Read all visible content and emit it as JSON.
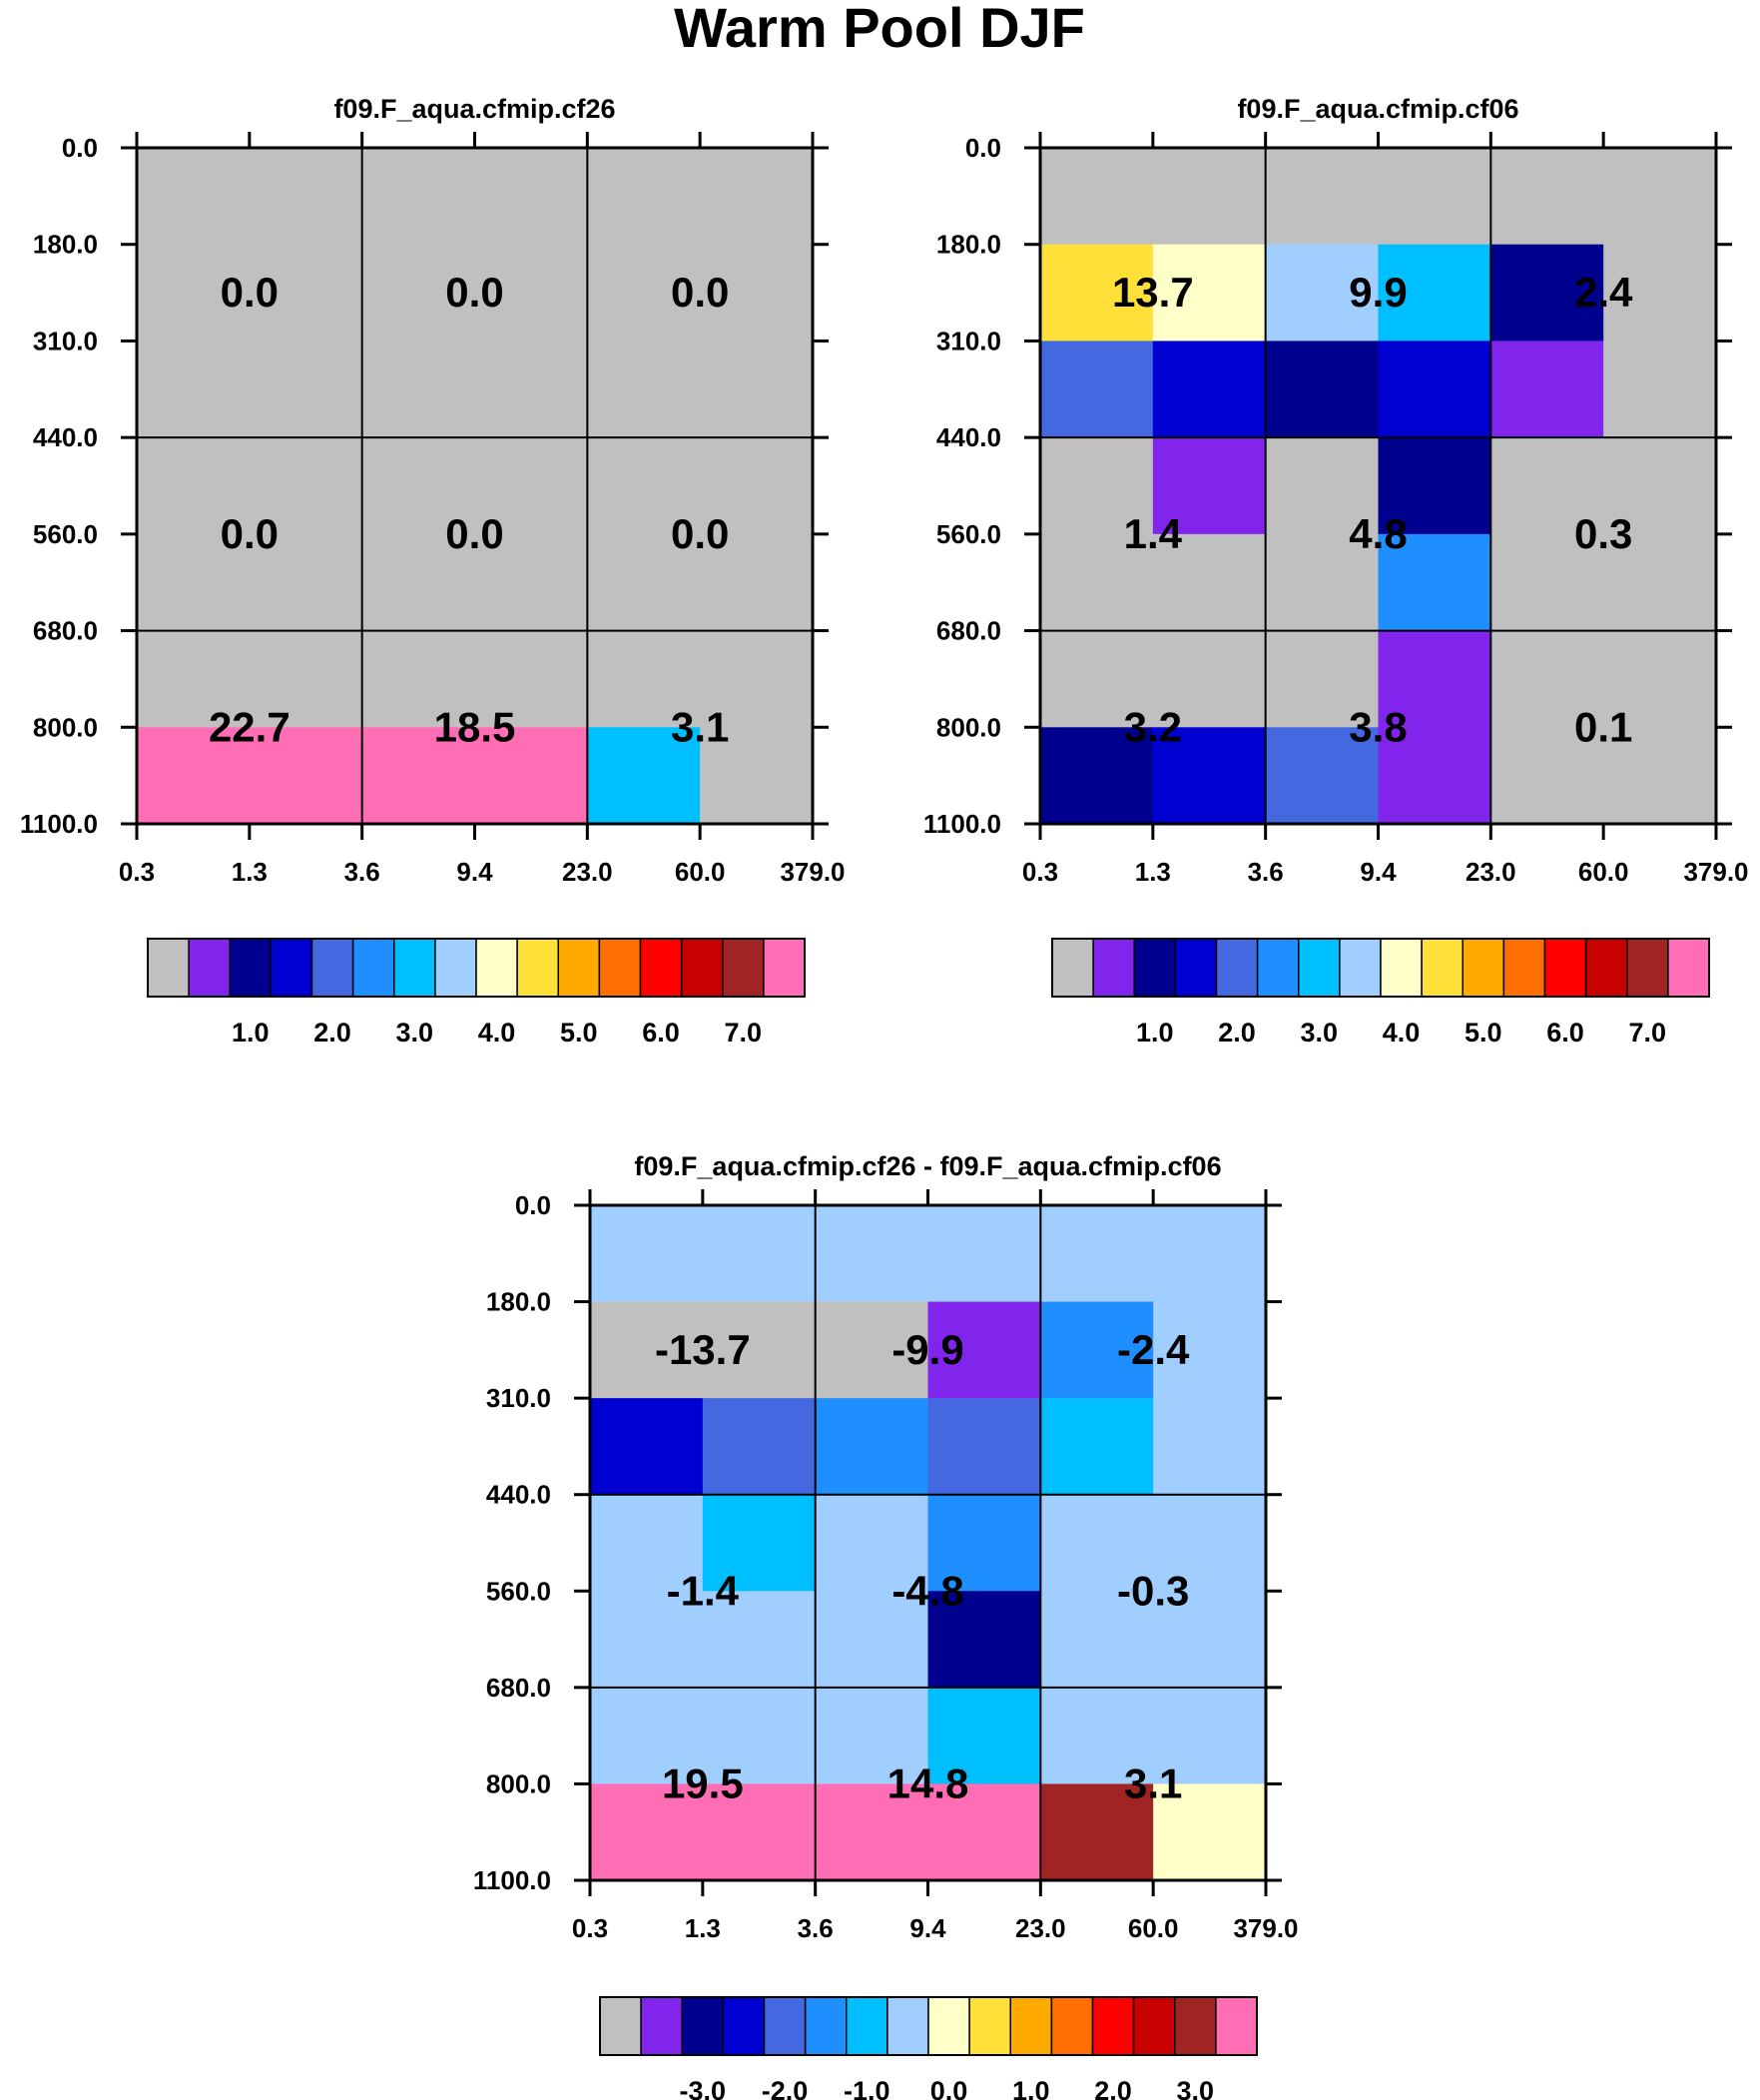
{
  "page_title": "Warm Pool DJF",
  "x_ticks": [
    "0.3",
    "1.3",
    "3.6",
    "9.4",
    "23.0",
    "60.0",
    "379.0"
  ],
  "y_ticks": [
    "0.0",
    "180.0",
    "310.0",
    "440.0",
    "560.0",
    "680.0",
    "800.0",
    "1100.0"
  ],
  "palette": [
    "#c0c0c0",
    "#8125ec",
    "#00008f",
    "#0000d0",
    "#4468e0",
    "#1f8fff",
    "#00bfff",
    "#a0cfff",
    "#ffffc8",
    "#ffe038",
    "#ffaa00",
    "#ff6e00",
    "#ff0000",
    "#c80000",
    "#a02424",
    "#ff6eb4"
  ],
  "chart_data": [
    {
      "type": "heatmap",
      "title": "f09.F_aqua.cfmip.cf26",
      "xlabel": "",
      "ylabel": "",
      "x_edges": [
        0.3,
        1.3,
        3.6,
        9.4,
        23.0,
        60.0,
        379.0
      ],
      "y_edges": [
        0.0,
        180.0,
        310.0,
        440.0,
        560.0,
        680.0,
        800.0,
        1100.0
      ],
      "grid": [
        [
          0,
          0,
          0,
          0,
          0,
          0
        ],
        [
          0,
          0,
          0,
          0,
          0,
          0
        ],
        [
          0,
          0,
          0,
          0,
          0,
          0
        ],
        [
          0,
          0,
          0,
          0,
          0,
          0
        ],
        [
          0,
          0,
          0,
          0,
          0,
          0
        ],
        [
          0,
          0,
          0,
          0,
          0,
          0
        ],
        [
          15,
          15,
          15,
          15,
          6,
          0
        ]
      ],
      "summary_labels": [
        [
          "0.0",
          "0.0",
          "0.0"
        ],
        [
          "0.0",
          "0.0",
          "0.0"
        ],
        [
          "22.7",
          "18.5",
          "3.1"
        ]
      ],
      "colorbar_labels": [
        "1.0",
        "2.0",
        "3.0",
        "4.0",
        "5.0",
        "6.0",
        "7.0"
      ]
    },
    {
      "type": "heatmap",
      "title": "f09.F_aqua.cfmip.cf06",
      "xlabel": "",
      "ylabel": "",
      "x_edges": [
        0.3,
        1.3,
        3.6,
        9.4,
        23.0,
        60.0,
        379.0
      ],
      "y_edges": [
        0.0,
        180.0,
        310.0,
        440.0,
        560.0,
        680.0,
        800.0,
        1100.0
      ],
      "grid": [
        [
          0,
          0,
          0,
          0,
          0,
          0
        ],
        [
          9,
          8,
          7,
          6,
          2,
          0
        ],
        [
          4,
          3,
          2,
          3,
          1,
          0
        ],
        [
          0,
          1,
          0,
          2,
          0,
          0
        ],
        [
          0,
          0,
          0,
          5,
          0,
          0
        ],
        [
          0,
          0,
          0,
          1,
          0,
          0
        ],
        [
          2,
          3,
          4,
          1,
          0,
          0
        ]
      ],
      "summary_labels": [
        [
          "13.7",
          "9.9",
          "2.4"
        ],
        [
          "1.4",
          "4.8",
          "0.3"
        ],
        [
          "3.2",
          "3.8",
          "0.1"
        ]
      ],
      "colorbar_labels": [
        "1.0",
        "2.0",
        "3.0",
        "4.0",
        "5.0",
        "6.0",
        "7.0"
      ]
    },
    {
      "type": "heatmap",
      "title": "f09.F_aqua.cfmip.cf26 - f09.F_aqua.cfmip.cf06",
      "xlabel": "",
      "ylabel": "",
      "x_edges": [
        0.3,
        1.3,
        3.6,
        9.4,
        23.0,
        60.0,
        379.0
      ],
      "y_edges": [
        0.0,
        180.0,
        310.0,
        440.0,
        560.0,
        680.0,
        800.0,
        1100.0
      ],
      "grid": [
        [
          7,
          7,
          7,
          7,
          7,
          7
        ],
        [
          0,
          0,
          0,
          1,
          5,
          7
        ],
        [
          3,
          4,
          5,
          4,
          6,
          7
        ],
        [
          7,
          6,
          7,
          5,
          7,
          7
        ],
        [
          7,
          7,
          7,
          2,
          7,
          7
        ],
        [
          7,
          7,
          7,
          6,
          7,
          7
        ],
        [
          15,
          15,
          15,
          15,
          14,
          8
        ]
      ],
      "summary_labels": [
        [
          "-13.7",
          "-9.9",
          "-2.4"
        ],
        [
          "-1.4",
          "-4.8",
          "-0.3"
        ],
        [
          "19.5",
          "14.8",
          "3.1"
        ]
      ],
      "colorbar_labels": [
        "-3.0",
        "-2.0",
        "-1.0",
        "0.0",
        "1.0",
        "2.0",
        "3.0"
      ]
    }
  ]
}
